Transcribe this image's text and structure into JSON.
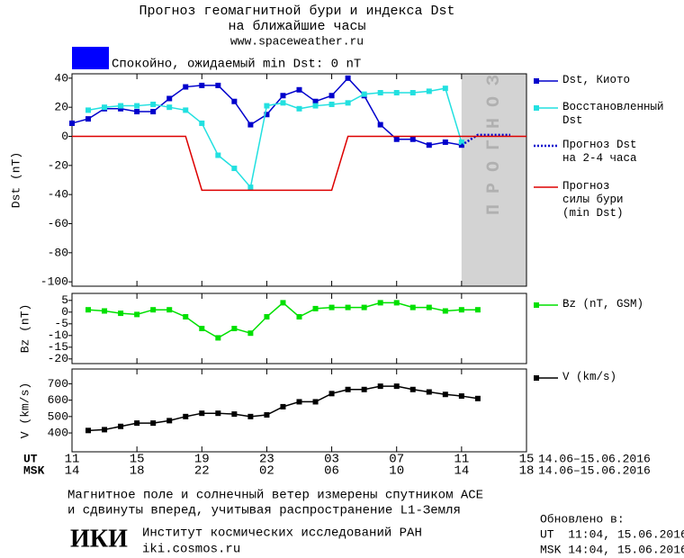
{
  "header": {
    "title_line1": "Прогноз геомагнитной бури и индекса Dst",
    "title_line2": "на ближайшие часы",
    "site": "www.spaceweather.ru",
    "status": "Спокойно, ожидаемый min Dst: 0 nT",
    "status_color": "#0000ff"
  },
  "chart_data": [
    {
      "type": "line",
      "ylabel": "Dst (nT)",
      "ylim": [
        -103,
        43
      ],
      "yticks": [
        40,
        20,
        0,
        -20,
        -40,
        -60,
        -80,
        -100
      ],
      "forecast_region": {
        "label": "ПРОГНОЗ",
        "xlim": [
          24,
          28
        ]
      },
      "series": [
        {
          "name": "Dst, Киото",
          "color": "#0000cc",
          "marker": true,
          "x": [
            0,
            1,
            2,
            3,
            4,
            5,
            6,
            7,
            8,
            9,
            10,
            11,
            12,
            13,
            14,
            15,
            16,
            17,
            18,
            19,
            20,
            21,
            22,
            23,
            24
          ],
          "values": [
            9,
            12,
            19,
            19,
            17,
            17,
            26,
            34,
            35,
            35,
            24,
            8,
            15,
            28,
            32,
            24,
            28,
            40,
            28,
            8,
            -2,
            -2,
            -6,
            -4,
            -6
          ]
        },
        {
          "name": "Восстановленный Dst",
          "color": "#22e0e0",
          "marker": true,
          "x": [
            1,
            2,
            3,
            4,
            5,
            6,
            7,
            8,
            9,
            10,
            11,
            12,
            13,
            14,
            15,
            16,
            17,
            18,
            19,
            20,
            21,
            22,
            23,
            24
          ],
          "values": [
            18,
            20,
            21,
            21,
            22,
            20,
            18,
            9,
            -13,
            -22,
            -35,
            21,
            23,
            19,
            21,
            22,
            23,
            29,
            30,
            30,
            30,
            31,
            33,
            -4
          ]
        },
        {
          "name": "Прогноз Dst на 2-4 часа",
          "color": "#0000cc",
          "marker": false,
          "dash": "dotted",
          "x": [
            24,
            25,
            26,
            27
          ],
          "values": [
            -6,
            1,
            1,
            1
          ]
        },
        {
          "name": "Прогноз силы бури (min Dst)",
          "color": "#dd0000",
          "marker": false,
          "x": [
            0,
            7,
            8,
            16,
            17,
            28
          ],
          "values": [
            0,
            0,
            -37,
            -37,
            0,
            0
          ]
        }
      ]
    },
    {
      "type": "line",
      "ylabel": "Bz (nT)",
      "ylim": [
        -22,
        8
      ],
      "yticks": [
        5,
        0,
        -5,
        -10,
        -15,
        -20
      ],
      "series": [
        {
          "name": "Bz (nT, GSM)",
          "color": "#00e000",
          "marker": true,
          "x": [
            1,
            2,
            3,
            4,
            5,
            6,
            7,
            8,
            9,
            10,
            11,
            12,
            13,
            14,
            15,
            16,
            17,
            18,
            19,
            20,
            21,
            22,
            23,
            24,
            25
          ],
          "values": [
            1,
            0.5,
            -0.5,
            -1,
            1,
            1,
            -2,
            -7,
            -11,
            -7,
            -9,
            -2,
            4,
            -2,
            1.5,
            2,
            2,
            2,
            4,
            4,
            2,
            2,
            0.5,
            1,
            1
          ]
        }
      ]
    },
    {
      "type": "line",
      "ylabel": "V (km/s)",
      "ylim": [
        285,
        790
      ],
      "yticks": [
        400,
        500,
        600,
        700
      ],
      "xlim": [
        0,
        28
      ],
      "xticks": [
        {
          "value": 0,
          "label": "11"
        },
        {
          "value": 4,
          "label": "15"
        },
        {
          "value": 8,
          "label": "19"
        },
        {
          "value": 12,
          "label": "23"
        },
        {
          "value": 16,
          "label": "03"
        },
        {
          "value": 20,
          "label": "07"
        },
        {
          "value": 24,
          "label": "11"
        },
        {
          "value": 28,
          "label": "15"
        }
      ],
      "msk_labels": [
        "14",
        "18",
        "22",
        "02",
        "06",
        "10",
        "14",
        "18"
      ],
      "ut_label": "UT",
      "msk_label": "MSK",
      "date_range": "14.06–15.06.2016",
      "series": [
        {
          "name": "V (km/s)",
          "color": "#000000",
          "marker": true,
          "x": [
            1,
            2,
            3,
            4,
            5,
            6,
            7,
            8,
            9,
            10,
            11,
            12,
            13,
            14,
            15,
            16,
            17,
            18,
            19,
            20,
            21,
            22,
            23,
            24,
            25
          ],
          "values": [
            415,
            420,
            440,
            460,
            460,
            475,
            500,
            520,
            520,
            515,
            500,
            510,
            560,
            590,
            590,
            640,
            665,
            665,
            685,
            685,
            665,
            650,
            635,
            625,
            610
          ]
        }
      ]
    }
  ],
  "footer": {
    "note_line1": "Магнитное поле и солнечный ветер измерены спутником ACE",
    "note_line2": "и сдвинуты вперед, учитывая распространение L1-Земля",
    "logo": "ИКИ",
    "institute": "Институт космических исследований РАН",
    "institute_site": "iki.cosmos.ru",
    "updated": "Обновлено в:",
    "updated_ut": "UT  11:04, 15.06.2016",
    "updated_msk": "MSK 14:04, 15.06.2016"
  }
}
